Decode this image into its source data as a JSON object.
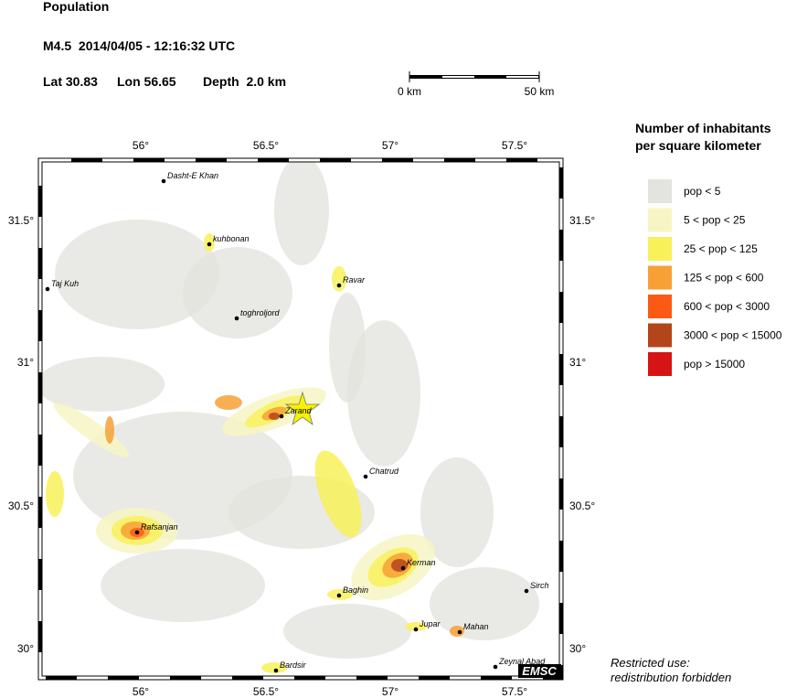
{
  "header": {
    "title": "Population",
    "event": "M4.5  2014/04/05 - 12:16:32 UTC",
    "lat": "Lat 30.83",
    "lon": "Lon 56.65",
    "depth": "Depth  2.0 km"
  },
  "scale_bar": {
    "start": "0 km",
    "end": "50 km"
  },
  "map": {
    "lon_labels": [
      "56°",
      "56.5°",
      "57°",
      "57.5°"
    ],
    "lat_labels": [
      "31.5°",
      "31°",
      "30.5°",
      "30°"
    ],
    "cities": [
      "Dasht-E Khan",
      "kuhbonan",
      "Taj Kuh",
      "Ravar",
      "toghroljord",
      "Zarand",
      "Chatrud",
      "Rafsanjan",
      "Kerman",
      "Baghin",
      "Sirch",
      "Jupar",
      "Mahan",
      "Bardsir",
      "Zeynal Abad"
    ],
    "logo": "EMSC"
  },
  "legend": {
    "title": [
      "Number of inhabitants",
      "per square kilometer"
    ],
    "items": [
      {
        "label": "pop < 5",
        "color": "#e3e3df"
      },
      {
        "label": "5 < pop < 25",
        "color": "#f7f5c3"
      },
      {
        "label": "25 < pop < 125",
        "color": "#f8f15a"
      },
      {
        "label": "125 < pop < 600",
        "color": "#f7a035"
      },
      {
        "label": "600 < pop < 3000",
        "color": "#fb5a14"
      },
      {
        "label": "3000 < pop < 15000",
        "color": "#b4441a"
      },
      {
        "label": "pop > 15000",
        "color": "#d71414"
      }
    ]
  },
  "footer": [
    "Restricted use:",
    "redistribution forbidden"
  ]
}
